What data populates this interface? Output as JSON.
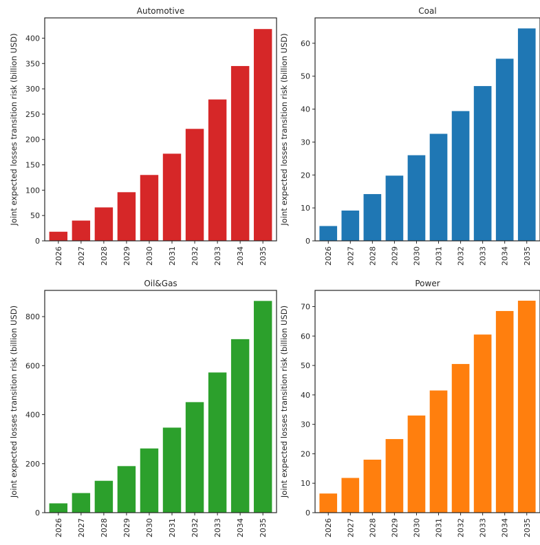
{
  "chart_data": [
    {
      "type": "bar",
      "title": "Automotive",
      "ylabel": "Joint expected losses transition risk (billion USD)",
      "xlabel": "",
      "categories": [
        "2026",
        "2027",
        "2028",
        "2029",
        "2030",
        "2031",
        "2032",
        "2033",
        "2034",
        "2035"
      ],
      "values": [
        18,
        40,
        66,
        96,
        130,
        172,
        221,
        279,
        345,
        418
      ],
      "ylim": [
        0,
        440
      ],
      "yticks": [
        0,
        50,
        100,
        150,
        200,
        250,
        300,
        350,
        400
      ],
      "color": "#d62728",
      "grid": false
    },
    {
      "type": "bar",
      "title": "Coal",
      "ylabel": "Joint expected losses transition risk (billion USD)",
      "xlabel": "",
      "categories": [
        "2026",
        "2027",
        "2028",
        "2029",
        "2030",
        "2031",
        "2032",
        "2033",
        "2034",
        "2035"
      ],
      "values": [
        4.5,
        9.2,
        14.2,
        19.8,
        26,
        32.5,
        39.4,
        47,
        55.3,
        64.5
      ],
      "ylim": [
        0,
        67.7
      ],
      "yticks": [
        0,
        10,
        20,
        30,
        40,
        50,
        60
      ],
      "color": "#1f77b4",
      "grid": false
    },
    {
      "type": "bar",
      "title": "Oil&Gas",
      "ylabel": "Joint expected losses transition risk (billion USD)",
      "xlabel": "",
      "categories": [
        "2026",
        "2027",
        "2028",
        "2029",
        "2030",
        "2031",
        "2032",
        "2033",
        "2034",
        "2035"
      ],
      "values": [
        38,
        80,
        130,
        190,
        262,
        347,
        451,
        572,
        708,
        864
      ],
      "ylim": [
        0,
        907
      ],
      "yticks": [
        0,
        200,
        400,
        600,
        800
      ],
      "color": "#2ca02c",
      "grid": false
    },
    {
      "type": "bar",
      "title": "Power",
      "ylabel": "Joint expected losses transition risk (billion USD)",
      "xlabel": "",
      "categories": [
        "2026",
        "2027",
        "2028",
        "2029",
        "2030",
        "2031",
        "2032",
        "2033",
        "2034",
        "2035"
      ],
      "values": [
        6.5,
        11.8,
        18,
        25,
        33,
        41.5,
        50.5,
        60.5,
        68.5,
        72
      ],
      "ylim": [
        0,
        75.5
      ],
      "yticks": [
        0,
        10,
        20,
        30,
        40,
        50,
        60,
        70
      ],
      "color": "#ff7f0e",
      "grid": false
    }
  ]
}
